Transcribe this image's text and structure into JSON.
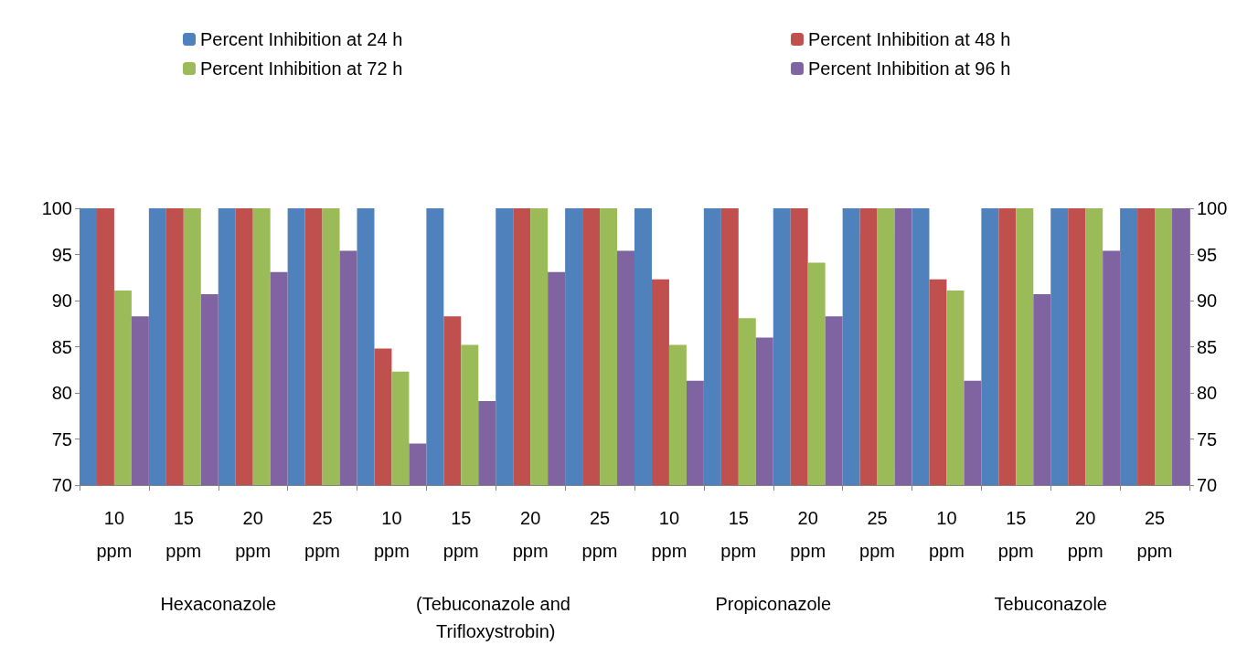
{
  "chart_data": {
    "type": "bar",
    "categories": [
      "10\nppm",
      "15\nppm",
      "20\nppm",
      "25\nppm",
      "10\nppm",
      "15\nppm",
      "20\nppm",
      "25\nppm",
      "10\nppm",
      "15\nppm",
      "20\nppm",
      "25\nppm",
      "10\nppm",
      "15\nppm",
      "20\nppm",
      "25\nppm"
    ],
    "series": [
      {
        "name": "Percent Inhibition at 24 h",
        "color": "#4f81bd",
        "values": [
          100,
          100,
          100,
          100,
          100,
          100,
          100,
          100,
          100,
          100,
          100,
          100,
          100,
          100,
          100,
          100
        ]
      },
      {
        "name": "Percent Inhibition at 48 h",
        "color": "#c0504d",
        "values": [
          100,
          100,
          100,
          100,
          84.8,
          88.3,
          100,
          100,
          92.3,
          100,
          100,
          100,
          92.3,
          100,
          100,
          100
        ]
      },
      {
        "name": "Percent Inhibition at 72 h",
        "color": "#9bbb59",
        "values": [
          91.1,
          100,
          100,
          100,
          82.3,
          85.2,
          100,
          100,
          85.2,
          88.1,
          94.1,
          100,
          91.1,
          100,
          100,
          100
        ]
      },
      {
        "name": "Percent Inhibition at 96 h",
        "color": "#8064a2",
        "values": [
          88.3,
          90.7,
          93.1,
          95.4,
          74.5,
          79.1,
          93.1,
          95.4,
          81.3,
          86,
          88.3,
          100,
          81.3,
          90.7,
          95.4,
          100
        ]
      }
    ],
    "annotations": [
      "Hexaconazole",
      "(Tebuconazole and Trifloxystrobin)",
      "Propiconazole",
      "Tebuconazole"
    ],
    "ylim": [
      70,
      100
    ],
    "yticks": [
      70,
      75,
      80,
      85,
      90,
      95,
      100
    ],
    "y2lim": [
      70,
      100
    ],
    "y2ticks": [
      70,
      75,
      80,
      85,
      90,
      95,
      100
    ],
    "grid": false,
    "legend": "top"
  }
}
